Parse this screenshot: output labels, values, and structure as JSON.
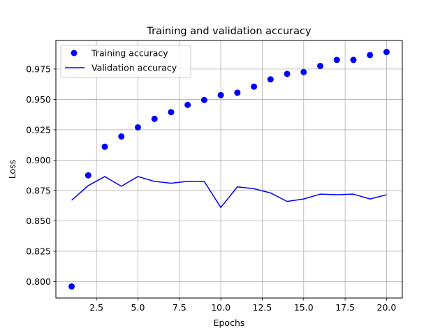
{
  "chart_data": {
    "type": "line",
    "title": "Training and validation accuracy",
    "xlabel": "Epochs",
    "ylabel": "Loss",
    "xlim": [
      0.05,
      20.95
    ],
    "ylim": [
      0.7865,
      0.9985
    ],
    "xticks": [
      2.5,
      5.0,
      7.5,
      10.0,
      12.5,
      15.0,
      17.5,
      20.0
    ],
    "xtick_labels": [
      "2.5",
      "5.0",
      "7.5",
      "10.0",
      "12.5",
      "15.0",
      "17.5",
      "20.0"
    ],
    "yticks": [
      0.8,
      0.825,
      0.85,
      0.875,
      0.9,
      0.925,
      0.95,
      0.975
    ],
    "ytick_labels": [
      "0.800",
      "0.825",
      "0.850",
      "0.875",
      "0.900",
      "0.925",
      "0.950",
      "0.975"
    ],
    "grid": true,
    "legend_position": "upper-left",
    "x": [
      1,
      2,
      3,
      4,
      5,
      6,
      7,
      8,
      9,
      10,
      11,
      12,
      13,
      14,
      15,
      16,
      17,
      18,
      19,
      20
    ],
    "series": [
      {
        "name": "Training accuracy",
        "style": "markers",
        "color": "#0000ff",
        "values": [
          0.796,
          0.8875,
          0.911,
          0.9195,
          0.927,
          0.934,
          0.9395,
          0.9455,
          0.9495,
          0.9535,
          0.9555,
          0.9605,
          0.9665,
          0.971,
          0.9725,
          0.9775,
          0.9825,
          0.9825,
          0.9865,
          0.989
        ]
      },
      {
        "name": "Validation accuracy",
        "style": "line",
        "color": "#0000ff",
        "values": [
          0.867,
          0.879,
          0.8865,
          0.8785,
          0.8865,
          0.8825,
          0.881,
          0.8825,
          0.8825,
          0.861,
          0.878,
          0.8765,
          0.873,
          0.866,
          0.868,
          0.872,
          0.8715,
          0.872,
          0.868,
          0.8715
        ]
      }
    ]
  }
}
